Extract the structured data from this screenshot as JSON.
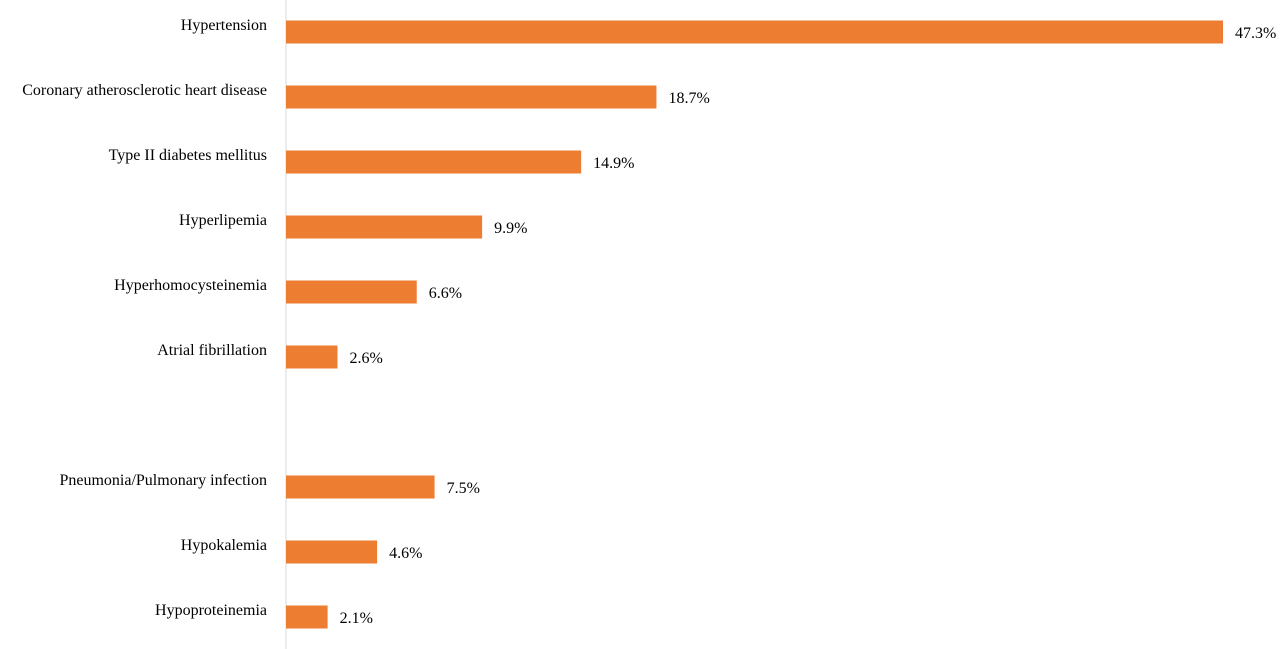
{
  "chart_data": {
    "type": "bar",
    "orientation": "horizontal",
    "categories": [
      "Hypertension",
      "Coronary atherosclerotic heart disease",
      "Type II diabetes mellitus",
      "Hyperlipemia",
      "Hyperhomocysteinemia",
      "Atrial fibrillation",
      "Pneumonia/Pulmonary infection",
      "Hypokalemia",
      "Hypoproteinemia"
    ],
    "values": [
      47.3,
      18.7,
      14.9,
      9.9,
      6.6,
      2.6,
      7.5,
      4.6,
      2.1
    ],
    "data_labels": [
      "47.3%",
      "18.7%",
      "14.9%",
      "9.9%",
      "6.6%",
      "2.6%",
      "7.5%",
      "4.6%",
      "2.1%"
    ],
    "groups": [
      {
        "categories": [
          "Hypertension",
          "Coronary atherosclerotic heart disease",
          "Type II diabetes mellitus",
          "Hyperlipemia",
          "Hyperhomocysteinemia",
          "Atrial fibrillation"
        ]
      },
      {
        "categories": [
          "Pneumonia/Pulmonary infection",
          "Hypokalemia",
          "Hypoproteinemia"
        ]
      }
    ],
    "title": "",
    "xlabel": "",
    "ylabel": "",
    "xlim": [
      0,
      47.3
    ],
    "grid": false,
    "legend": "none",
    "bar_color": "#ED7D31",
    "axis_color": "#D9D9D9"
  }
}
